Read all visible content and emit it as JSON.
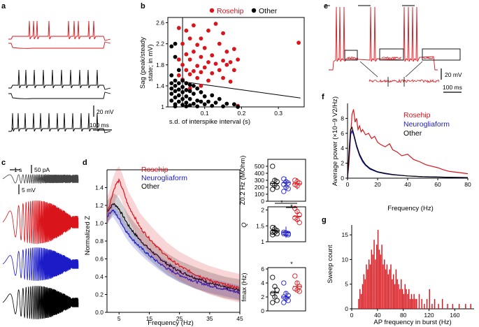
{
  "colors": {
    "rosehip": "#d9141b",
    "neuroglia": "#1b1bc8",
    "other": "#000000"
  },
  "panels": {
    "a": "a",
    "b": "b",
    "c": "c",
    "d": "d",
    "e": "e",
    "f": "f",
    "g": "g"
  },
  "scalebars": {
    "a_v": "20 mV",
    "a_t": "100 ms",
    "c_t": "1 s",
    "c_i": "50 pA",
    "c_v": "5 mV",
    "e_v": "20 mV",
    "e_t": "100 ms"
  },
  "chart_data": [
    {
      "id": "b",
      "type": "scatter",
      "title": "",
      "xlabel": "s.d. of interspike interval (s)",
      "ylabel": "Sag (peak/steady state; in mV)",
      "xlim": [
        0,
        0.37
      ],
      "ylim": [
        1.0,
        2.7
      ],
      "xticks": [
        "0.1",
        "0.2",
        "0.3"
      ],
      "yticks": [
        "1",
        "1.4",
        "1.8",
        "2.2",
        "2.6"
      ],
      "legend": [
        "Rosehip",
        "Other"
      ],
      "threshold_x": 0.04,
      "fit_line": {
        "x": [
          0.04,
          0.36
        ],
        "y": [
          1.48,
          1.17
        ]
      },
      "series": [
        {
          "name": "Rosehip",
          "color": "#d9141b",
          "points": [
            [
              0.03,
              2.5
            ],
            [
              0.05,
              2.45
            ],
            [
              0.07,
              2.55
            ],
            [
              0.09,
              2.3
            ],
            [
              0.11,
              2.45
            ],
            [
              0.13,
              2.58
            ],
            [
              0.15,
              2.4
            ],
            [
              0.04,
              2.2
            ],
            [
              0.06,
              2.3
            ],
            [
              0.08,
              2.18
            ],
            [
              0.1,
              2.12
            ],
            [
              0.14,
              2.2
            ],
            [
              0.16,
              2.05
            ],
            [
              0.18,
              2.1
            ],
            [
              0.05,
              2.0
            ],
            [
              0.07,
              2.05
            ],
            [
              0.09,
              1.95
            ],
            [
              0.12,
              1.98
            ],
            [
              0.03,
              1.9
            ],
            [
              0.06,
              1.9
            ],
            [
              0.11,
              1.85
            ],
            [
              0.15,
              1.88
            ],
            [
              0.17,
              1.85
            ],
            [
              0.19,
              1.9
            ],
            [
              0.04,
              1.8
            ],
            [
              0.08,
              1.78
            ],
            [
              0.1,
              1.75
            ],
            [
              0.13,
              1.82
            ],
            [
              0.16,
              1.8
            ],
            [
              0.05,
              1.7
            ],
            [
              0.07,
              1.68
            ],
            [
              0.09,
              1.66
            ],
            [
              0.14,
              1.7
            ],
            [
              0.03,
              1.6
            ],
            [
              0.06,
              1.62
            ],
            [
              0.12,
              1.64
            ],
            [
              0.18,
              1.7
            ],
            [
              0.04,
              1.52
            ],
            [
              0.08,
              1.55
            ],
            [
              0.11,
              1.5
            ],
            [
              0.15,
              1.55
            ],
            [
              0.05,
              1.45
            ],
            [
              0.17,
              1.48
            ],
            [
              0.06,
              1.35
            ],
            [
              0.09,
              1.4
            ],
            [
              0.355,
              2.22
            ],
            [
              0.19,
              1.02
            ]
          ]
        },
        {
          "name": "Other",
          "color": "#000000",
          "points": [
            [
              0.02,
              2.2
            ],
            [
              0.01,
              2.15
            ],
            [
              0.02,
              1.95
            ],
            [
              0.03,
              1.7
            ],
            [
              0.01,
              1.6
            ],
            [
              0.02,
              1.5
            ],
            [
              0.04,
              1.5
            ],
            [
              0.01,
              1.45
            ],
            [
              0.03,
              1.45
            ],
            [
              0.05,
              1.45
            ],
            [
              0.06,
              1.42
            ],
            [
              0.02,
              1.4
            ],
            [
              0.04,
              1.38
            ],
            [
              0.07,
              1.4
            ],
            [
              0.01,
              1.35
            ],
            [
              0.03,
              1.33
            ],
            [
              0.05,
              1.32
            ],
            [
              0.08,
              1.35
            ],
            [
              0.02,
              1.3
            ],
            [
              0.04,
              1.28
            ],
            [
              0.06,
              1.3
            ],
            [
              0.09,
              1.28
            ],
            [
              0.01,
              1.25
            ],
            [
              0.03,
              1.22
            ],
            [
              0.05,
              1.2
            ],
            [
              0.07,
              1.25
            ],
            [
              0.1,
              1.2
            ],
            [
              0.12,
              1.22
            ],
            [
              0.02,
              1.18
            ],
            [
              0.04,
              1.15
            ],
            [
              0.06,
              1.15
            ],
            [
              0.08,
              1.12
            ],
            [
              0.14,
              1.15
            ],
            [
              0.01,
              1.12
            ],
            [
              0.03,
              1.1
            ],
            [
              0.05,
              1.08
            ],
            [
              0.09,
              1.1
            ],
            [
              0.11,
              1.1
            ],
            [
              0.02,
              1.05
            ],
            [
              0.04,
              1.04
            ],
            [
              0.06,
              1.03
            ],
            [
              0.07,
              1.06
            ],
            [
              0.1,
              1.05
            ],
            [
              0.13,
              1.08
            ],
            [
              0.16,
              1.06
            ],
            [
              0.18,
              1.05
            ],
            [
              0.02,
              1.01
            ],
            [
              0.05,
              1.01
            ],
            [
              0.08,
              1.01
            ],
            [
              0.12,
              1.02
            ],
            [
              0.15,
              1.01
            ],
            [
              0.19,
              1.0
            ]
          ]
        }
      ]
    },
    {
      "id": "d",
      "type": "line",
      "xlabel": "Frequency (Hz)",
      "ylabel": "Normalized Z",
      "xlim": [
        1,
        45
      ],
      "ylim": [
        0,
        1.6
      ],
      "xticks": [
        5,
        15,
        25,
        35,
        45
      ],
      "yticks": [
        0,
        0.2,
        0.4,
        0.6,
        0.8,
        1.0,
        1.2,
        1.4
      ],
      "legend": [
        "Rosehip",
        "Neurogliaform",
        "Other"
      ],
      "series": [
        {
          "name": "Rosehip",
          "color": "#d9141b",
          "x": [
            1,
            2,
            3,
            4,
            5,
            6,
            7,
            8,
            10,
            12,
            15,
            18,
            21,
            25,
            30,
            35,
            40,
            45
          ],
          "y": [
            1.13,
            1.22,
            1.35,
            1.44,
            1.48,
            1.4,
            1.3,
            1.2,
            1.08,
            0.95,
            0.83,
            0.72,
            0.62,
            0.52,
            0.43,
            0.36,
            0.31,
            0.27
          ],
          "band": 0.16
        },
        {
          "name": "Neurogliaform",
          "color": "#1b1bc8",
          "x": [
            1,
            2,
            3,
            4,
            5,
            6,
            7,
            8,
            10,
            12,
            15,
            18,
            21,
            25,
            30,
            35,
            40,
            45
          ],
          "y": [
            1.07,
            1.12,
            1.15,
            1.1,
            1.05,
            0.99,
            0.93,
            0.88,
            0.8,
            0.73,
            0.64,
            0.56,
            0.49,
            0.42,
            0.35,
            0.3,
            0.26,
            0.22
          ],
          "band": 0.08
        },
        {
          "name": "Other",
          "color": "#000000",
          "x": [
            1,
            2,
            3,
            4,
            5,
            6,
            7,
            8,
            10,
            12,
            15,
            18,
            21,
            25,
            30,
            35,
            40,
            45
          ],
          "y": [
            1.13,
            1.17,
            1.22,
            1.2,
            1.16,
            1.1,
            1.04,
            0.98,
            0.89,
            0.81,
            0.71,
            0.62,
            0.54,
            0.46,
            0.39,
            0.33,
            0.28,
            0.25
          ],
          "band": 0.12
        }
      ]
    },
    {
      "id": "d_inset_z",
      "type": "scatter",
      "ylabel": "Z0.2 Hz (MOhm)",
      "ylim": [
        0,
        600
      ],
      "yticks": [
        "0",
        "100",
        "200",
        "300",
        "400",
        "500"
      ],
      "groups": [
        "Other",
        "Neurogliaform",
        "Rosehip"
      ],
      "means": [
        255,
        265,
        250
      ],
      "points": [
        [
          500,
          300,
          280,
          250,
          230,
          200,
          170
        ],
        [
          320,
          280,
          260,
          240,
          200,
          180,
          140
        ],
        [
          300,
          280,
          260,
          240,
          220
        ]
      ]
    },
    {
      "id": "d_inset_q",
      "type": "scatter",
      "ylabel": "Q",
      "ylim": [
        1.0,
        2.1
      ],
      "yticks": [
        "1",
        "1.5",
        "2"
      ],
      "significance": [
        "*",
        "*"
      ],
      "groups": [
        "Other",
        "Neurogliaform",
        "Rosehip"
      ],
      "means": [
        1.35,
        1.3,
        1.8
      ],
      "points": [
        [
          1.45,
          1.4,
          1.35,
          1.3,
          1.3,
          1.25,
          1.22
        ],
        [
          1.3,
          1.28,
          1.26,
          1.25,
          1.24,
          1.22
        ],
        [
          2.05,
          1.95,
          1.85,
          1.75,
          1.7,
          1.6
        ]
      ]
    },
    {
      "id": "d_inset_fmax",
      "type": "scatter",
      "ylabel": "fmax (Hz)",
      "ylim": [
        0,
        6.2
      ],
      "yticks": [
        "0",
        "2",
        "4",
        "6"
      ],
      "significance": [
        "*"
      ],
      "groups": [
        "Other",
        "Neurogliaform",
        "Rosehip"
      ],
      "means": [
        2.6,
        2.0,
        3.5
      ],
      "points": [
        [
          4.8,
          3.5,
          3.0,
          2.5,
          2.0,
          1.5,
          1.2
        ],
        [
          4.0,
          2.5,
          2.2,
          2.0,
          1.8,
          1.5,
          1.2
        ],
        [
          5.0,
          4.0,
          3.5,
          3.2,
          3.0,
          2.8
        ]
      ]
    },
    {
      "id": "f",
      "type": "line",
      "xlabel": "Frequency (Hz)",
      "ylabel": "Average power (×10−9 V2/Hz)",
      "xlim": [
        0,
        80
      ],
      "ylim": [
        0,
        10
      ],
      "xticks": [
        0,
        20,
        40,
        60,
        80
      ],
      "yticks": [
        0,
        2,
        4,
        6,
        8
      ],
      "legend": [
        "Rosehip",
        "Neurogliaform",
        "Other"
      ],
      "series": [
        {
          "name": "Rosehip",
          "color": "#d9141b",
          "x": [
            0,
            1,
            2,
            3,
            4,
            5,
            6,
            7,
            8,
            9,
            10,
            12,
            14,
            16,
            18,
            20,
            22,
            25,
            28,
            30,
            33,
            36,
            40,
            44,
            48,
            52,
            56,
            60,
            64,
            68,
            72,
            76,
            80
          ],
          "y": [
            0,
            2.0,
            5.5,
            8.5,
            9.2,
            7.5,
            8.0,
            6.5,
            7.0,
            6.2,
            6.5,
            5.8,
            6.0,
            5.3,
            5.6,
            4.8,
            4.5,
            4.2,
            4.6,
            3.8,
            3.5,
            3.0,
            3.2,
            2.5,
            2.2,
            1.8,
            1.6,
            1.4,
            1.1,
            0.9,
            0.8,
            0.7,
            0.6
          ]
        },
        {
          "name": "Neurogliaform",
          "color": "#1b1bc8",
          "x": [
            0,
            1,
            2,
            3,
            4,
            5,
            6,
            8,
            10,
            12,
            15,
            20,
            25,
            30,
            40,
            50,
            60,
            70,
            80
          ],
          "y": [
            0,
            3.0,
            5.8,
            6.3,
            5.8,
            5.0,
            4.2,
            3.0,
            2.2,
            1.7,
            1.2,
            0.8,
            0.6,
            0.45,
            0.3,
            0.2,
            0.15,
            0.1,
            0.08
          ]
        },
        {
          "name": "Other",
          "color": "#000000",
          "x": [
            0,
            1,
            2,
            3,
            4,
            5,
            6,
            8,
            10,
            12,
            15,
            20,
            25,
            30,
            40,
            50,
            60,
            70,
            80
          ],
          "y": [
            0,
            3.5,
            6.5,
            6.8,
            6.0,
            5.2,
            4.4,
            3.2,
            2.4,
            1.8,
            1.3,
            0.85,
            0.65,
            0.5,
            0.3,
            0.2,
            0.15,
            0.1,
            0.08
          ]
        }
      ]
    },
    {
      "id": "g",
      "type": "bar",
      "xlabel": "AP frequency in burst (Hz)",
      "ylabel": "Sweep count",
      "xlim": [
        0,
        190
      ],
      "ylim": [
        0,
        17
      ],
      "xticks": [
        0,
        40,
        80,
        120,
        160
      ],
      "yticks": [
        0,
        5,
        10,
        15
      ],
      "bin_width": 1,
      "x": [
        10,
        12,
        14,
        16,
        18,
        20,
        22,
        24,
        26,
        28,
        30,
        32,
        34,
        36,
        38,
        40,
        42,
        44,
        46,
        48,
        50,
        52,
        54,
        56,
        58,
        60,
        62,
        64,
        66,
        68,
        70,
        72,
        74,
        76,
        78,
        80,
        82,
        84,
        86,
        88,
        90,
        92,
        94,
        96,
        98,
        100,
        104,
        108,
        112,
        116,
        120,
        124,
        128,
        134,
        140,
        148,
        156,
        166,
        176,
        184
      ],
      "values": [
        2,
        4,
        3,
        5,
        7,
        6,
        9,
        8,
        10,
        9,
        12,
        11,
        14,
        10,
        13,
        16,
        12,
        11,
        13,
        9,
        10,
        8,
        9,
        7,
        8,
        9,
        6,
        7,
        5,
        8,
        6,
        5,
        4,
        6,
        4,
        3,
        5,
        4,
        3,
        4,
        2,
        3,
        2,
        3,
        2,
        2,
        3,
        2,
        1,
        2,
        4,
        1,
        2,
        1,
        2,
        1,
        1,
        1,
        1,
        1
      ]
    }
  ],
  "legends": {
    "b": {
      "rosehip": "Rosehip",
      "other": "Other"
    },
    "d": {
      "rosehip": "Rosehip",
      "neuroglia": "Neurogliaform",
      "other": "Other"
    },
    "f": {
      "rosehip": "Rosehip",
      "neuroglia": "Neurogliaform",
      "other": "Other"
    }
  },
  "axis_text": {
    "b_x": "s.d. of interspike interval (s)",
    "b_y1": "Sag (peak/steady",
    "b_y2": "state; in mV)",
    "d_x": "Frequency (Hz)",
    "d_y": "Normalized Z",
    "z_y": "Z0.2 Hz (MOhm)",
    "q_y": "Q",
    "fmax_y": "fmax (Hz)",
    "f_x": "Frequency (Hz)",
    "f_y": "Average power (×10−9 V2/Hz)",
    "g_x": "AP frequency in burst (Hz)",
    "g_y": "Sweep count"
  }
}
